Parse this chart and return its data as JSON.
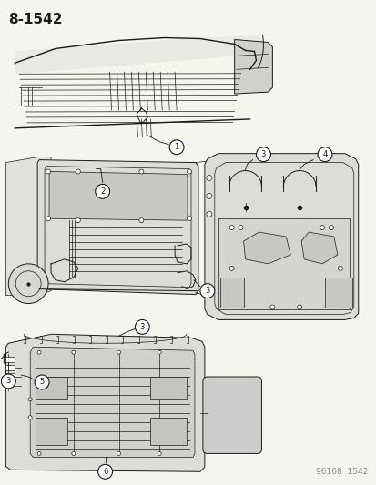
{
  "background_color": "#f5f5f0",
  "page_number": "8-1542",
  "footer_code": "96108  1542",
  "title_fontsize": 11,
  "footer_fontsize": 6.5,
  "label_fontsize": 7,
  "line_color": "#1a1a1a",
  "light_gray": "#cccccc",
  "mid_gray": "#888888"
}
